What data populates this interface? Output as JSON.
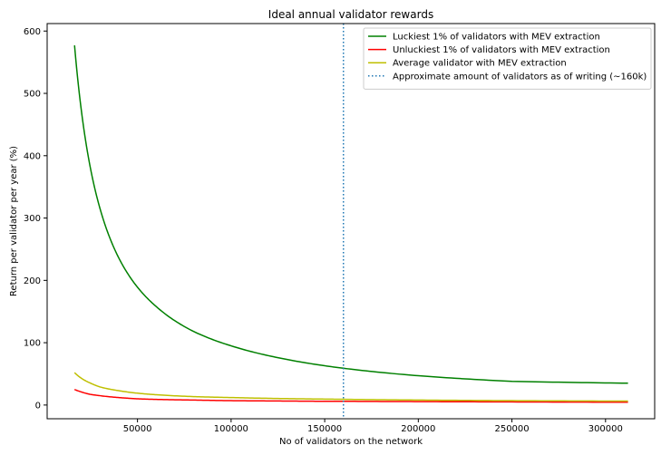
{
  "chart_data": {
    "type": "line",
    "title": "Ideal annual validator rewards",
    "xlabel": "No of validators on the network",
    "ylabel": "Return per validator per year (%)",
    "xlim": [
      1750,
      326250
    ],
    "ylim": [
      -22,
      612
    ],
    "xticks": [
      50000,
      100000,
      150000,
      200000,
      250000,
      300000
    ],
    "yticks": [
      0,
      100,
      200,
      300,
      400,
      500,
      600
    ],
    "grid": false,
    "legend_position": "top-right",
    "x_range": [
      16384,
      312000
    ],
    "series": [
      {
        "name": "Luckiest 1% of validators with MEV extraction",
        "color": "#008000",
        "style": "solid",
        "x": [
          16384,
          20000,
          25000,
          30000,
          40000,
          50000,
          60000,
          80000,
          100000,
          125000,
          150000,
          160000,
          200000,
          250000,
          312000
        ],
        "y": [
          577,
          473,
          378,
          315,
          236,
          189,
          158,
          118,
          95,
          76,
          63,
          59,
          47,
          38,
          35
        ]
      },
      {
        "name": "Unluckiest 1% of validators with MEV extraction",
        "color": "#ff0000",
        "style": "solid",
        "x": [
          16384,
          20000,
          25000,
          30000,
          40000,
          50000,
          60000,
          80000,
          100000,
          125000,
          150000,
          160000,
          200000,
          250000,
          312000
        ],
        "y": [
          25,
          21,
          17,
          15,
          12,
          10,
          9,
          8,
          7,
          6.5,
          6,
          6,
          5.5,
          5,
          4.5
        ]
      },
      {
        "name": "Average validator with MEV extraction",
        "color": "#bfbf00",
        "style": "solid",
        "x": [
          16384,
          20000,
          25000,
          30000,
          40000,
          50000,
          60000,
          80000,
          100000,
          125000,
          150000,
          160000,
          200000,
          250000,
          312000
        ],
        "y": [
          52,
          43,
          35,
          29,
          23,
          19,
          16.5,
          13.5,
          12,
          10.5,
          9.5,
          9.2,
          8,
          7,
          6.3
        ]
      },
      {
        "name": "Approximate amount of validators as of writing (~160k)",
        "color": "#1f77b4",
        "style": "dotted",
        "x_value": 160000
      }
    ]
  }
}
